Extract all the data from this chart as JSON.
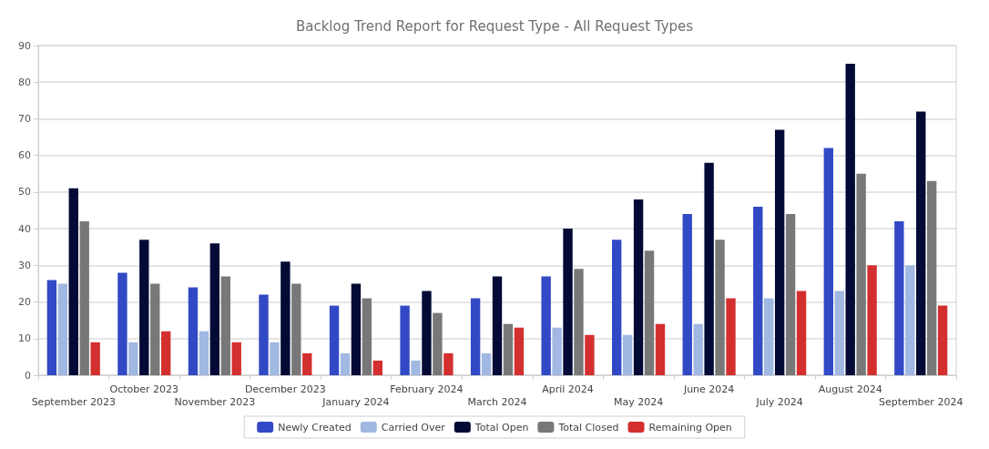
{
  "chart_data": {
    "type": "bar",
    "title": "Backlog Trend Report for Request Type - All Request Types",
    "categories": [
      "September 2023",
      "October 2023",
      "November 2023",
      "December 2023",
      "January 2024",
      "February 2024",
      "March 2024",
      "April 2024",
      "May 2024",
      "June 2024",
      "July 2024",
      "August 2024",
      "September 2024"
    ],
    "series": [
      {
        "name": "Newly Created",
        "color": "#3249c6",
        "values": [
          26,
          28,
          24,
          22,
          19,
          19,
          21,
          27,
          37,
          44,
          46,
          62,
          42
        ]
      },
      {
        "name": "Carried Over",
        "color": "#a0b8e2",
        "values": [
          25,
          9,
          12,
          9,
          6,
          4,
          6,
          13,
          11,
          14,
          21,
          23,
          30
        ]
      },
      {
        "name": "Total Open",
        "color": "#020a35",
        "values": [
          51,
          37,
          36,
          31,
          25,
          23,
          27,
          40,
          48,
          58,
          67,
          85,
          72
        ]
      },
      {
        "name": "Total Closed",
        "color": "#787878",
        "values": [
          42,
          25,
          27,
          25,
          21,
          17,
          14,
          29,
          34,
          37,
          44,
          55,
          53
        ]
      },
      {
        "name": "Remaining Open",
        "color": "#d42f2f",
        "values": [
          9,
          12,
          9,
          6,
          4,
          6,
          13,
          11,
          14,
          21,
          23,
          30,
          19
        ]
      }
    ],
    "ylim": [
      0,
      90
    ],
    "yticks": [
      0,
      10,
      20,
      30,
      40,
      50,
      60,
      70,
      80,
      90
    ],
    "grid": "y",
    "legend": "bottom"
  }
}
